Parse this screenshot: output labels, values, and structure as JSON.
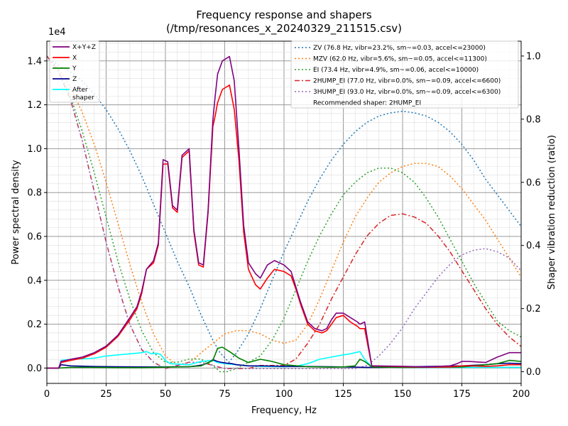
{
  "chart_data": {
    "type": "line",
    "title": "Frequency response and shapers",
    "subtitle": "(/tmp/resonances_x_20240329_211515.csv)",
    "xlabel": "Frequency, Hz",
    "ylabel": "Power spectral density",
    "ylabel_right": "Shaper vibration reduction (ratio)",
    "y_exponent_label": "1e4",
    "xlim": [
      0,
      200
    ],
    "ylim": [
      -700,
      14900
    ],
    "ylim_right": [
      -0.037,
      1.047
    ],
    "x_ticks": [
      "0",
      "25",
      "50",
      "75",
      "100",
      "125",
      "150",
      "175",
      "200"
    ],
    "y_ticks": [
      "0.0",
      "0.2",
      "0.4",
      "0.6",
      "0.8",
      "1.0",
      "1.2",
      "1.4"
    ],
    "y_tick_values": [
      0,
      2000,
      4000,
      6000,
      8000,
      10000,
      12000,
      14000
    ],
    "y_right_ticks": [
      "0.0",
      "0.2",
      "0.4",
      "0.6",
      "0.8",
      "1.0"
    ],
    "grid": true,
    "legend_left_placement": "top-left",
    "legend_right_placement": "top-right",
    "psd_series": [
      {
        "name": "X+Y+Z",
        "color": "#800080",
        "width": 1.6,
        "x": [
          0,
          5,
          6,
          10,
          15,
          20,
          25,
          30,
          35,
          38,
          40,
          42,
          45,
          47,
          49,
          51,
          53,
          55,
          57,
          60,
          62,
          64,
          66,
          68,
          70,
          71,
          72,
          74,
          77,
          79,
          81,
          83,
          85,
          88,
          90,
          93,
          96,
          100,
          103,
          105,
          107,
          110,
          113,
          116,
          118,
          120,
          122,
          125,
          128,
          131,
          132,
          134,
          137,
          150,
          160,
          170,
          173,
          175,
          178,
          185,
          190,
          195,
          200
        ],
        "y": [
          0,
          0,
          300,
          400,
          500,
          700,
          1000,
          1500,
          2300,
          2800,
          3500,
          4500,
          4900,
          5700,
          9500,
          9400,
          7400,
          7200,
          9700,
          10000,
          6300,
          4800,
          4700,
          7200,
          11300,
          12400,
          13400,
          14000,
          14200,
          13100,
          10000,
          6500,
          4800,
          4300,
          4100,
          4700,
          4900,
          4700,
          4400,
          3700,
          3000,
          2100,
          1800,
          1700,
          1800,
          2200,
          2500,
          2500,
          2300,
          2100,
          2000,
          2100,
          100,
          80,
          50,
          100,
          200,
          300,
          300,
          250,
          500,
          700,
          700
        ]
      },
      {
        "name": "X",
        "color": "#ff0000",
        "width": 1.6,
        "x": [
          0,
          5,
          6,
          10,
          15,
          20,
          25,
          30,
          35,
          38,
          40,
          42,
          45,
          47,
          49,
          51,
          53,
          55,
          57,
          60,
          62,
          64,
          66,
          68,
          70,
          71,
          72,
          74,
          77,
          79,
          81,
          83,
          85,
          88,
          90,
          93,
          96,
          100,
          103,
          105,
          107,
          110,
          113,
          116,
          118,
          120,
          122,
          125,
          128,
          131,
          132,
          134,
          137,
          150,
          160,
          170,
          173,
          175,
          178,
          185,
          190,
          195,
          200
        ],
        "y": [
          0,
          0,
          250,
          350,
          450,
          650,
          950,
          1450,
          2200,
          2700,
          3400,
          4500,
          4800,
          5600,
          9300,
          9300,
          7300,
          7100,
          9600,
          9900,
          6200,
          4700,
          4600,
          7100,
          11000,
          11500,
          12100,
          12700,
          12900,
          11800,
          9500,
          6200,
          4500,
          3800,
          3600,
          4100,
          4500,
          4400,
          4200,
          3600,
          2900,
          2000,
          1700,
          1600,
          1700,
          2000,
          2300,
          2400,
          2100,
          1900,
          1800,
          1800,
          100,
          60,
          40,
          50,
          80,
          100,
          100,
          80,
          100,
          150,
          150
        ]
      },
      {
        "name": "Y",
        "color": "#008000",
        "width": 1.6,
        "x": [
          0,
          5,
          10,
          20,
          30,
          40,
          50,
          60,
          65,
          70,
          72,
          74,
          77,
          79,
          81,
          85,
          90,
          95,
          100,
          110,
          120,
          125,
          130,
          132,
          134,
          137,
          150,
          175,
          190,
          195,
          200
        ],
        "y": [
          0,
          0,
          30,
          30,
          20,
          20,
          40,
          60,
          100,
          350,
          900,
          950,
          750,
          600,
          450,
          250,
          400,
          300,
          150,
          60,
          40,
          50,
          100,
          400,
          300,
          50,
          30,
          50,
          200,
          350,
          300
        ]
      },
      {
        "name": "Z",
        "color": "#00008b",
        "width": 1.6,
        "x": [
          0,
          5,
          6,
          10,
          20,
          30,
          40,
          50,
          55,
          60,
          63,
          66,
          69,
          70,
          72,
          74,
          76,
          78,
          80,
          85,
          90,
          100,
          120,
          125,
          130,
          135,
          140,
          150,
          175,
          185,
          190,
          195,
          200
        ],
        "y": [
          0,
          0,
          150,
          100,
          70,
          60,
          50,
          50,
          60,
          60,
          100,
          150,
          300,
          380,
          300,
          250,
          220,
          200,
          150,
          100,
          100,
          80,
          60,
          50,
          40,
          30,
          30,
          50,
          100,
          150,
          200,
          220,
          200
        ]
      },
      {
        "name": "After shaper",
        "color": "#00ffff",
        "width": 1.6,
        "x": [
          0,
          5,
          6,
          10,
          15,
          20,
          25,
          30,
          35,
          38,
          40,
          42,
          44,
          46,
          48,
          50,
          52,
          55,
          60,
          65,
          70,
          72,
          75,
          80,
          85,
          90,
          100,
          105,
          110,
          115,
          120,
          125,
          128,
          130,
          132,
          134,
          137,
          150,
          175,
          200
        ],
        "y": [
          0,
          0,
          350,
          400,
          420,
          450,
          550,
          600,
          650,
          680,
          700,
          750,
          650,
          680,
          620,
          350,
          200,
          180,
          150,
          300,
          350,
          250,
          200,
          150,
          100,
          80,
          60,
          80,
          200,
          400,
          500,
          600,
          650,
          700,
          750,
          400,
          50,
          30,
          30,
          30
        ]
      }
    ],
    "shaper_series": [
      {
        "name": "ZV (76.8 Hz, vibr=23.2%, sm~=0.03, accel<=23000)",
        "color": "#1f77b4",
        "dash": "2,3",
        "x": [
          0,
          5,
          10,
          15,
          20,
          25,
          30,
          35,
          40,
          45,
          50,
          55,
          60,
          65,
          70,
          73,
          76.8,
          80,
          85,
          90,
          95,
          100,
          105,
          110,
          115,
          120,
          125,
          130,
          135,
          140,
          145,
          150,
          155,
          160,
          165,
          170,
          175,
          180,
          185,
          190,
          195,
          200
        ],
        "y": [
          1.0,
          0.97,
          0.95,
          0.92,
          0.88,
          0.83,
          0.77,
          0.7,
          0.62,
          0.53,
          0.44,
          0.35,
          0.27,
          0.18,
          0.1,
          0.06,
          0.03,
          0.06,
          0.12,
          0.2,
          0.29,
          0.38,
          0.46,
          0.54,
          0.61,
          0.67,
          0.72,
          0.76,
          0.79,
          0.81,
          0.82,
          0.825,
          0.82,
          0.81,
          0.79,
          0.76,
          0.72,
          0.67,
          0.61,
          0.56,
          0.51,
          0.46
        ]
      },
      {
        "name": "MZV (62.0 Hz, vibr=5.6%, sm~=0.05, accel<=11300)",
        "color": "#ff7f0e",
        "dash": "2,3",
        "x": [
          0,
          5,
          10,
          15,
          20,
          25,
          30,
          35,
          40,
          45,
          50,
          55,
          60,
          62,
          65,
          70,
          75,
          80,
          85,
          90,
          95,
          100,
          105,
          110,
          115,
          120,
          125,
          130,
          135,
          140,
          145,
          150,
          155,
          160,
          165,
          170,
          175,
          180,
          185,
          190,
          195,
          200
        ],
        "y": [
          1.0,
          0.96,
          0.9,
          0.82,
          0.72,
          0.6,
          0.47,
          0.34,
          0.22,
          0.12,
          0.05,
          0.02,
          0.03,
          0.04,
          0.06,
          0.09,
          0.12,
          0.13,
          0.13,
          0.12,
          0.1,
          0.09,
          0.1,
          0.15,
          0.23,
          0.32,
          0.41,
          0.49,
          0.55,
          0.6,
          0.63,
          0.65,
          0.66,
          0.66,
          0.65,
          0.62,
          0.58,
          0.53,
          0.48,
          0.42,
          0.36,
          0.3
        ]
      },
      {
        "name": "EI (73.4 Hz, vibr=4.9%, sm~=0.06, accel<=10000)",
        "color": "#2ca02c",
        "dash": "2,3",
        "x": [
          0,
          5,
          10,
          15,
          20,
          25,
          30,
          35,
          40,
          45,
          50,
          55,
          60,
          65,
          70,
          73,
          76,
          80,
          85,
          90,
          95,
          100,
          105,
          110,
          115,
          120,
          125,
          130,
          135,
          140,
          145,
          150,
          155,
          160,
          165,
          170,
          175,
          180,
          185,
          190,
          195,
          200
        ],
        "y": [
          1.0,
          0.95,
          0.87,
          0.76,
          0.63,
          0.49,
          0.35,
          0.23,
          0.13,
          0.06,
          0.03,
          0.03,
          0.04,
          0.04,
          0.02,
          0.0,
          0.0,
          0.01,
          0.03,
          0.05,
          0.1,
          0.17,
          0.26,
          0.35,
          0.43,
          0.5,
          0.56,
          0.6,
          0.63,
          0.645,
          0.645,
          0.63,
          0.6,
          0.55,
          0.49,
          0.42,
          0.35,
          0.28,
          0.22,
          0.16,
          0.13,
          0.11
        ]
      },
      {
        "name": "2HUMP_EI (77.0 Hz, vibr=0.0%, sm~=0.09, accel<=6600)",
        "color": "#d62728",
        "dash": "7,3,2,3",
        "x": [
          0,
          5,
          10,
          15,
          20,
          25,
          30,
          35,
          40,
          45,
          50,
          55,
          60,
          65,
          70,
          75,
          80,
          85,
          90,
          95,
          100,
          105,
          110,
          115,
          120,
          125,
          130,
          135,
          140,
          145,
          150,
          155,
          160,
          165,
          170,
          175,
          180,
          185,
          190,
          195,
          200
        ],
        "y": [
          1.0,
          0.95,
          0.86,
          0.73,
          0.57,
          0.41,
          0.27,
          0.15,
          0.07,
          0.03,
          0.01,
          0.02,
          0.03,
          0.03,
          0.02,
          0.01,
          0.01,
          0.01,
          0.02,
          0.02,
          0.02,
          0.04,
          0.09,
          0.15,
          0.23,
          0.3,
          0.37,
          0.43,
          0.47,
          0.495,
          0.5,
          0.49,
          0.47,
          0.43,
          0.38,
          0.32,
          0.26,
          0.2,
          0.15,
          0.11,
          0.08
        ]
      },
      {
        "name": "3HUMP_EI (93.0 Hz, vibr=0.0%, sm~=0.09, accel<=6300)",
        "color": "#9467bd",
        "dash": "2,3",
        "x": [
          0,
          5,
          10,
          15,
          20,
          25,
          30,
          35,
          40,
          45,
          50,
          55,
          60,
          65,
          70,
          75,
          80,
          85,
          90,
          95,
          100,
          105,
          110,
          115,
          120,
          125,
          130,
          135,
          140,
          145,
          150,
          155,
          160,
          165,
          170,
          175,
          180,
          185,
          190,
          195,
          200
        ],
        "y": [
          1.0,
          0.95,
          0.86,
          0.73,
          0.57,
          0.41,
          0.27,
          0.15,
          0.07,
          0.03,
          0.01,
          0.02,
          0.03,
          0.03,
          0.02,
          0.01,
          0.01,
          0.01,
          0.01,
          0.01,
          0.01,
          0.01,
          0.01,
          0.01,
          0.01,
          0.01,
          0.01,
          0.02,
          0.05,
          0.09,
          0.14,
          0.2,
          0.25,
          0.3,
          0.34,
          0.37,
          0.385,
          0.39,
          0.38,
          0.36,
          0.32
        ]
      }
    ],
    "legend_left": [
      {
        "label": "X+Y+Z",
        "color": "#800080",
        "style": "solid"
      },
      {
        "label": "X",
        "color": "#ff0000",
        "style": "solid"
      },
      {
        "label": "Y",
        "color": "#008000",
        "style": "solid"
      },
      {
        "label": "Z",
        "color": "#00008b",
        "style": "solid"
      },
      {
        "label": "After",
        "label2": "shaper",
        "color": "#00ffff",
        "style": "solid"
      }
    ],
    "legend_right": [
      {
        "label": "ZV (76.8 Hz, vibr=23.2%, sm~=0.03, accel<=23000)",
        "color": "#1f77b4",
        "style": "2,3"
      },
      {
        "label": "MZV (62.0 Hz, vibr=5.6%, sm~=0.05, accel<=11300)",
        "color": "#ff7f0e",
        "style": "2,3"
      },
      {
        "label": "EI (73.4 Hz, vibr=4.9%, sm~=0.06, accel<=10000)",
        "color": "#2ca02c",
        "style": "2,3"
      },
      {
        "label": "2HUMP_EI (77.0 Hz, vibr=0.0%, sm~=0.09, accel<=6600)",
        "color": "#d62728",
        "style": "7,3,2,3"
      },
      {
        "label": "3HUMP_EI (93.0 Hz, vibr=0.0%, sm~=0.09, accel<=6300)",
        "color": "#9467bd",
        "style": "2,3"
      },
      {
        "label": "Recommended shaper: 2HUMP_EI",
        "color": "",
        "style": "none"
      }
    ]
  }
}
